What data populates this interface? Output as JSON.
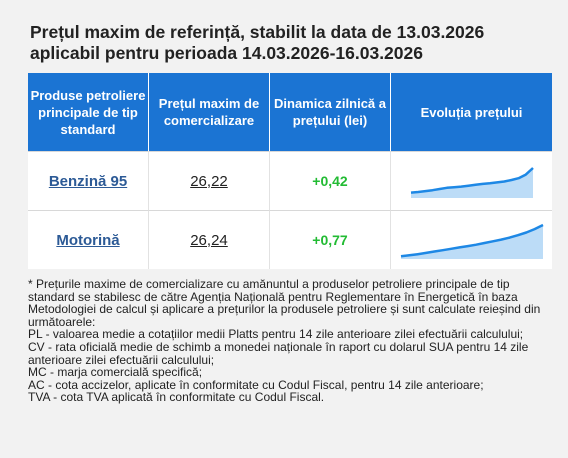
{
  "title_line1": "Prețul maxim de referință, stabilit la data de 13.03.2026",
  "title_line2": "aplicabil pentru perioada 14.03.2026-16.03.2026",
  "table": {
    "headers": [
      "Produse petroliere principale de tip standard",
      "Prețul maxim de comercializare",
      "Dinamica zilnică a prețului (lei)",
      "Evoluția prețului"
    ],
    "rows": [
      {
        "product": "Benzină 95",
        "price": "26,22",
        "delta": "+0,42",
        "trend": [
          0.18,
          0.2,
          0.23,
          0.26,
          0.3,
          0.34,
          0.36,
          0.38,
          0.41,
          0.44,
          0.47,
          0.49,
          0.52,
          0.55,
          0.6,
          0.66,
          0.78,
          1.0
        ]
      },
      {
        "product": "Motorină",
        "price": "26,24",
        "delta": "+0,77",
        "trend": [
          0.08,
          0.11,
          0.14,
          0.18,
          0.22,
          0.26,
          0.3,
          0.34,
          0.38,
          0.42,
          0.47,
          0.52,
          0.57,
          0.63,
          0.7,
          0.78,
          0.88,
          1.0
        ]
      }
    ]
  },
  "colors": {
    "header_bg": "#1b74d3",
    "delta": "#22bb33",
    "spark_line": "#1e88e5",
    "spark_fill": "#bcdcf7"
  },
  "notes": [
    "* Prețurile maxime de comercializare cu amănuntul a produselor petroliere principale de tip standard se stabilesc de către Agenția Națională pentru Reglementare în Energetică în baza Metodologiei de calcul și aplicare a prețurilor la produsele petroliere și sunt calculate reieșind din următoarele:",
    "PL - valoarea medie a cotațiilor medii Platts pentru 14 zile anterioare zilei efectuării calculului;",
    "CV - rata oficială medie de schimb a monedei naționale în raport cu dolarul SUA pentru 14 zile anterioare zilei efectuării calculului;",
    "MC - marja comercială specifică;",
    "AC - cota accizelor, aplicate în conformitate cu Codul Fiscal, pentru 14 zile anterioare;",
    "TVA - cota TVA aplicată în conformitate cu Codul Fiscal."
  ]
}
